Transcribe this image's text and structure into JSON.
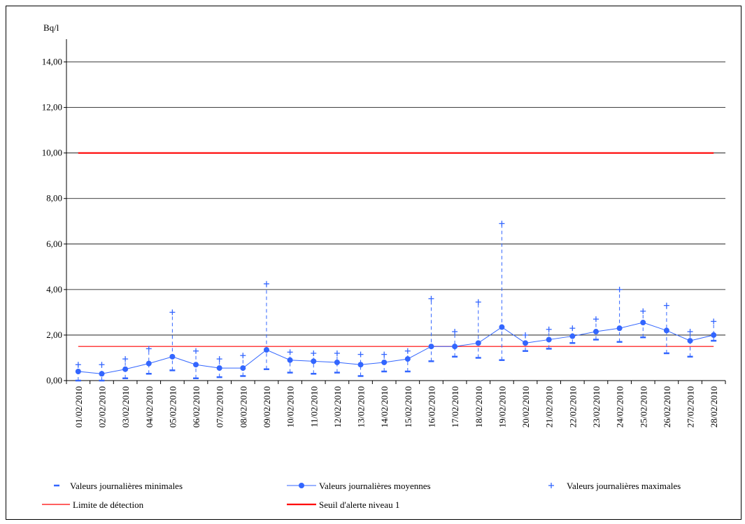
{
  "chart_data": {
    "type": "line",
    "unit_label": "Bq/l",
    "ylim": [
      0,
      15
    ],
    "y_ticks": [
      "0,00",
      "2,00",
      "4,00",
      "6,00",
      "8,00",
      "10,00",
      "12,00",
      "14,00"
    ],
    "grid": "horizontal",
    "legend_position": "bottom",
    "categories": [
      "01/02/2010",
      "02/02/2010",
      "03/02/2010",
      "04/02/2010",
      "05/02/2010",
      "06/02/2010",
      "07/02/2010",
      "08/02/2010",
      "09/02/2010",
      "10/02/2010",
      "11/02/2010",
      "12/02/2010",
      "13/02/2010",
      "14/02/2010",
      "15/02/2010",
      "16/02/2010",
      "17/02/2010",
      "18/02/2010",
      "19/02/2010",
      "20/02/2010",
      "21/02/2010",
      "22/02/2010",
      "23/02/2010",
      "24/02/2010",
      "25/02/2010",
      "26/02/2010",
      "27/02/2010",
      "28/02/2010"
    ],
    "series": [
      {
        "name": "Valeurs journalières minimales",
        "color": "#3366ff",
        "marker": "dash",
        "values": [
          0.0,
          0.0,
          0.1,
          0.3,
          0.45,
          0.1,
          0.15,
          0.2,
          0.5,
          0.35,
          0.3,
          0.35,
          0.2,
          0.4,
          0.4,
          0.85,
          1.05,
          1.0,
          0.9,
          1.3,
          1.4,
          1.65,
          1.8,
          1.7,
          1.9,
          1.2,
          1.05,
          1.75
        ]
      },
      {
        "name": "Valeurs journalières moyennes",
        "color": "#3366ff",
        "marker": "circle-line",
        "values": [
          0.4,
          0.3,
          0.5,
          0.75,
          1.05,
          0.7,
          0.55,
          0.55,
          1.35,
          0.9,
          0.85,
          0.8,
          0.7,
          0.8,
          0.95,
          1.5,
          1.5,
          1.65,
          2.35,
          1.65,
          1.8,
          1.95,
          2.15,
          2.3,
          2.55,
          2.2,
          1.75,
          2.0
        ]
      },
      {
        "name": "Valeurs journalières maximales",
        "color": "#3366ff",
        "marker": "plus",
        "values": [
          0.7,
          0.7,
          0.95,
          1.4,
          3.0,
          1.3,
          0.95,
          1.1,
          4.25,
          1.25,
          1.2,
          1.2,
          1.15,
          1.15,
          1.3,
          3.6,
          2.15,
          3.45,
          6.9,
          2.0,
          2.25,
          2.3,
          2.7,
          4.0,
          3.05,
          3.3,
          2.15,
          2.6
        ]
      },
      {
        "name": "Limite de détection",
        "color": "#ff0000",
        "marker": "line",
        "constant": 1.5
      },
      {
        "name": "Seuil d'alerte niveau 1",
        "color": "#ff0000",
        "marker": "thick-line",
        "constant": 10.0
      }
    ]
  }
}
